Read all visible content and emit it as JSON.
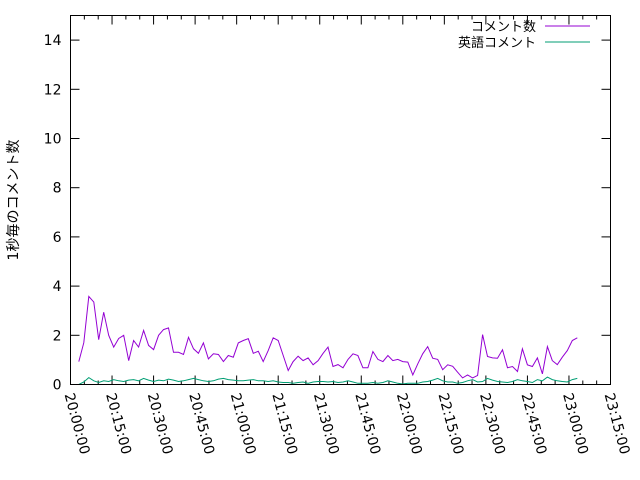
{
  "chart_data": {
    "type": "line",
    "title": "",
    "xlabel": "",
    "ylabel": "1秒毎のコメント数",
    "xlim": [
      "20:00:00",
      "23:15:00"
    ],
    "ylim": [
      0,
      15
    ],
    "xticks": [
      "20:00:00",
      "20:15:00",
      "20:30:00",
      "20:45:00",
      "21:00:00",
      "21:15:00",
      "21:30:00",
      "21:45:00",
      "22:00:00",
      "22:15:00",
      "22:30:00",
      "22:45:00",
      "23:00:00",
      "23:15:00"
    ],
    "yticks": [
      0,
      2,
      4,
      6,
      8,
      10,
      12,
      14
    ],
    "grid": false,
    "legend_position": "top-right",
    "x": [
      "20:03:00",
      "20:04:48",
      "20:06:36",
      "20:08:24",
      "20:10:12",
      "20:12:00",
      "20:13:48",
      "20:15:36",
      "20:17:24",
      "20:19:12",
      "20:21:00",
      "20:22:48",
      "20:24:36",
      "20:26:24",
      "20:28:12",
      "20:30:00",
      "20:31:48",
      "20:33:36",
      "20:35:24",
      "20:37:12",
      "20:39:00",
      "20:40:48",
      "20:42:36",
      "20:44:24",
      "20:46:12",
      "20:48:00",
      "20:49:48",
      "20:51:36",
      "20:53:24",
      "20:55:12",
      "20:57:00",
      "20:58:48",
      "21:00:36",
      "21:02:24",
      "21:04:12",
      "21:06:00",
      "21:07:48",
      "21:09:36",
      "21:11:24",
      "21:13:12",
      "21:15:00",
      "21:16:48",
      "21:18:36",
      "21:20:24",
      "21:22:12",
      "21:24:00",
      "21:25:48",
      "21:27:36",
      "21:29:24",
      "21:31:12",
      "21:33:00",
      "21:34:48",
      "21:36:36",
      "21:38:24",
      "21:40:12",
      "21:42:00",
      "21:43:48",
      "21:45:36",
      "21:47:24",
      "21:49:12",
      "21:51:00",
      "21:52:48",
      "21:54:36",
      "21:56:24",
      "21:58:12",
      "22:00:00",
      "22:01:48",
      "22:03:36",
      "22:05:24",
      "22:07:12",
      "22:09:00",
      "22:10:48",
      "22:12:36",
      "22:14:24",
      "22:16:12",
      "22:18:00",
      "22:19:48",
      "22:21:36",
      "22:23:24",
      "22:25:12",
      "22:27:00",
      "22:28:48",
      "22:30:36",
      "22:32:24",
      "22:34:12",
      "22:36:00",
      "22:37:48",
      "22:39:36",
      "22:41:24",
      "22:43:12",
      "22:45:00",
      "22:46:48",
      "22:48:36",
      "22:50:24",
      "22:52:12",
      "22:54:00",
      "22:55:48",
      "22:57:36",
      "22:59:24",
      "23:01:12",
      "23:03:00"
    ],
    "series": [
      {
        "name": "コメント数",
        "color": "#9400d3",
        "values": [
          0.93,
          1.7,
          3.58,
          3.35,
          1.82,
          2.94,
          2.0,
          1.52,
          1.87,
          2.0,
          0.97,
          1.79,
          1.52,
          2.2,
          1.59,
          1.42,
          2.0,
          2.23,
          2.3,
          1.31,
          1.31,
          1.22,
          1.92,
          1.45,
          1.27,
          1.69,
          1.04,
          1.25,
          1.22,
          0.93,
          1.18,
          1.11,
          1.69,
          1.79,
          1.86,
          1.27,
          1.35,
          0.93,
          1.38,
          1.9,
          1.79,
          1.18,
          0.57,
          0.93,
          1.15,
          0.97,
          1.08,
          0.8,
          0.97,
          1.27,
          1.52,
          0.73,
          0.81,
          0.68,
          1.02,
          1.25,
          1.18,
          0.68,
          0.68,
          1.34,
          1.02,
          0.93,
          1.18,
          0.97,
          1.02,
          0.93,
          0.91,
          0.39,
          0.84,
          1.25,
          1.54,
          1.07,
          1.02,
          0.6,
          0.8,
          0.74,
          0.5,
          0.27,
          0.39,
          0.27,
          0.37,
          2.03,
          1.14,
          1.08,
          1.07,
          1.41,
          0.68,
          0.73,
          0.53,
          1.45,
          0.8,
          0.73,
          1.08,
          0.43,
          1.54,
          0.97,
          0.81,
          1.11,
          1.38,
          1.79,
          1.9
        ]
      },
      {
        "name": "英語コメント",
        "color": "#009e73",
        "values": [
          0.0,
          0.1,
          0.28,
          0.15,
          0.08,
          0.15,
          0.12,
          0.2,
          0.15,
          0.12,
          0.18,
          0.2,
          0.15,
          0.25,
          0.18,
          0.12,
          0.18,
          0.15,
          0.22,
          0.18,
          0.12,
          0.15,
          0.2,
          0.25,
          0.2,
          0.15,
          0.12,
          0.15,
          0.22,
          0.25,
          0.2,
          0.18,
          0.15,
          0.15,
          0.18,
          0.2,
          0.15,
          0.15,
          0.12,
          0.15,
          0.1,
          0.08,
          0.08,
          0.05,
          0.08,
          0.1,
          0.05,
          0.1,
          0.12,
          0.12,
          0.1,
          0.12,
          0.08,
          0.1,
          0.15,
          0.1,
          0.05,
          0.05,
          0.05,
          0.08,
          0.05,
          0.08,
          0.15,
          0.1,
          0.05,
          0.02,
          0.05,
          0.05,
          0.05,
          0.1,
          0.12,
          0.18,
          0.25,
          0.15,
          0.1,
          0.1,
          0.05,
          0.08,
          0.15,
          0.2,
          0.1,
          0.12,
          0.25,
          0.18,
          0.12,
          0.1,
          0.08,
          0.12,
          0.2,
          0.15,
          0.12,
          0.08,
          0.2,
          0.15,
          0.3,
          0.2,
          0.15,
          0.12,
          0.1,
          0.2,
          0.25
        ]
      }
    ]
  }
}
